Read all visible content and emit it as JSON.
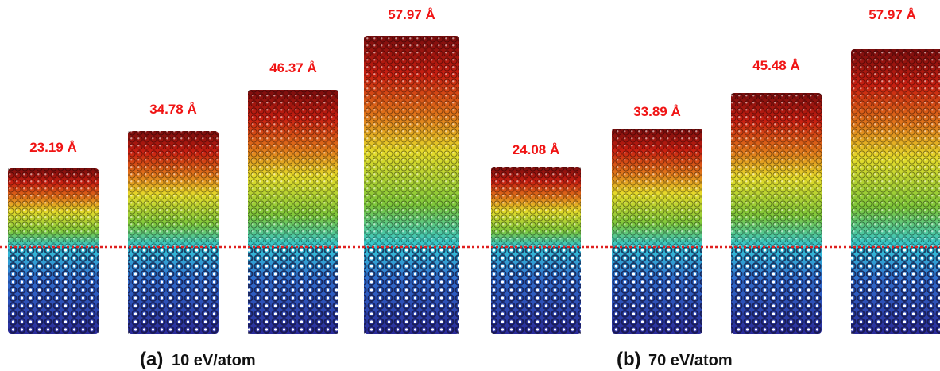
{
  "panels": [
    {
      "label": "(a)",
      "energy": "10 eV/atom",
      "columns": [
        "23.19 Å",
        "34.78 Å",
        "46.37 Å",
        "57.97 Å"
      ]
    },
    {
      "label": "(b)",
      "energy": "70 eV/atom",
      "columns": [
        "24.08 Å",
        "33.89 Å",
        "45.48 Å",
        "57.97 Å"
      ]
    }
  ]
}
